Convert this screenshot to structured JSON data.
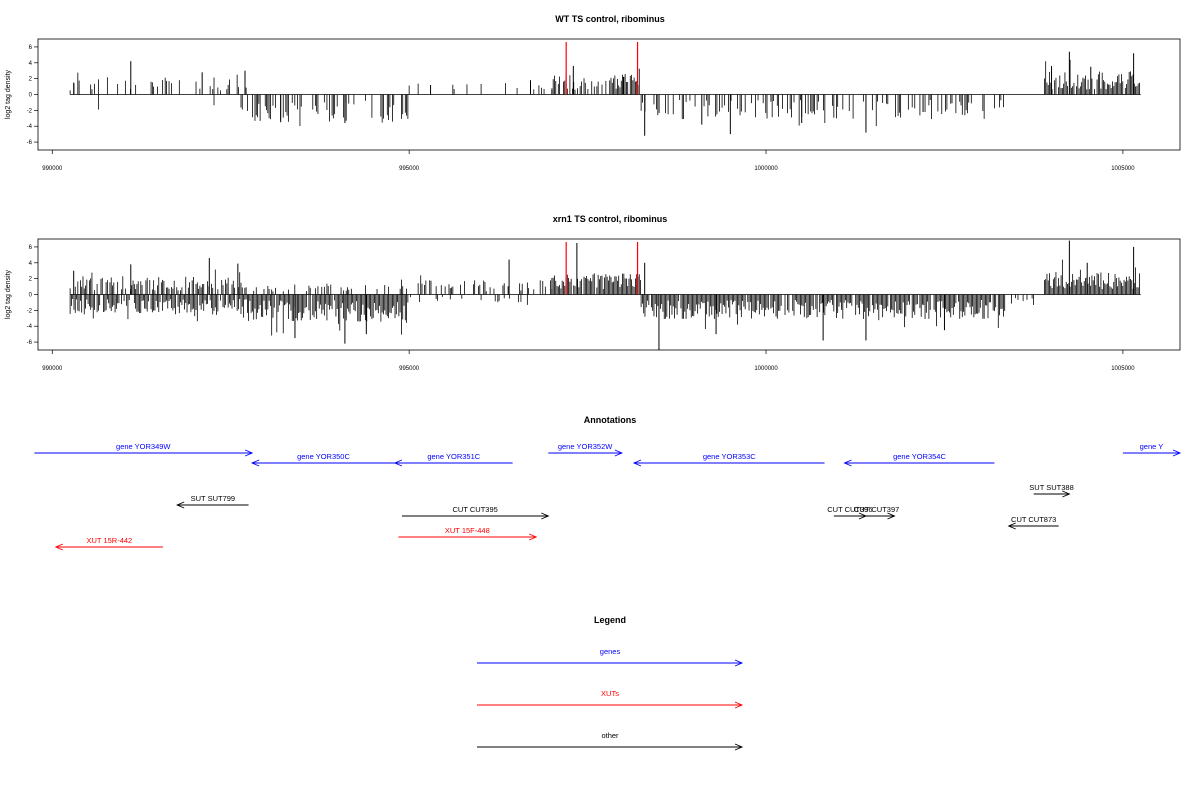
{
  "chart_data": [
    {
      "type": "bar",
      "title": "WT TS control, ribominus",
      "ylabel": "log2 tag density",
      "ylim": [
        -7,
        7
      ],
      "yticks": [
        -6,
        -4,
        -2,
        0,
        2,
        4,
        6
      ],
      "xlim": [
        989800,
        1005800
      ],
      "xticks": [
        990000,
        995000,
        1000000,
        1005000
      ],
      "grid": false,
      "baseline_range": [
        990250,
        1005250
      ],
      "markers": [
        997200,
        998200
      ],
      "marker_color": "#ff0000",
      "values_sample": {
        "x": [
          990300,
          991100,
          992100,
          992700,
          993200,
          994100,
          995300,
          996700,
          997300,
          998000,
          998300,
          999100,
          999500,
          1000500,
          1001400,
          1002200,
          1004000,
          1004250,
          1004550,
          1005150
        ],
        "y": [
          1.5,
          4.2,
          2.8,
          3.0,
          -3.5,
          -3.6,
          1.2,
          1.8,
          3.6,
          2.2,
          -5.2,
          -3.8,
          -5.0,
          -3.6,
          -4.8,
          -2.2,
          3.6,
          5.4,
          3.5,
          5.2
        ]
      },
      "y_extremes": {
        "max": 5.4,
        "min": -5.2
      }
    },
    {
      "type": "bar",
      "title": "xrn1 TS control, ribominus",
      "ylabel": "log2 tag density",
      "ylim": [
        -7,
        7
      ],
      "yticks": [
        -6,
        -4,
        -2,
        0,
        2,
        4,
        6
      ],
      "xlim": [
        989800,
        1005800
      ],
      "xticks": [
        990000,
        995000,
        1000000,
        1005000
      ],
      "grid": false,
      "baseline_range": [
        990250,
        1005250
      ],
      "markers": [
        997200,
        998200
      ],
      "marker_color": "#ff0000",
      "values_sample": {
        "x": [
          990300,
          991100,
          992200,
          992600,
          993400,
          994100,
          994400,
          996400,
          997350,
          998300,
          998500,
          999300,
          1000800,
          1001400,
          1002500,
          1004250,
          1004500,
          1005150
        ],
        "y": [
          3.0,
          3.8,
          4.6,
          3.9,
          -5.5,
          -6.2,
          -5.0,
          4.4,
          6.5,
          4.0,
          -7.0,
          -5.0,
          -5.8,
          -5.8,
          -4.5,
          6.8,
          4.0,
          6.0
        ]
      },
      "y_extremes": {
        "max": 6.8,
        "min": -7.0
      }
    }
  ],
  "annotations": {
    "title": "Annotations",
    "colors": {
      "gene": "#0000ff",
      "xut": "#ff0000",
      "other": "#000000"
    },
    "features": [
      {
        "label": "gene YOR349W",
        "start": 989750,
        "end": 992800,
        "strand": "+",
        "kind": "gene",
        "row": 0
      },
      {
        "label": "gene YOR350C",
        "start": 992800,
        "end": 994800,
        "strand": "-",
        "kind": "gene",
        "row": 1
      },
      {
        "label": "gene YOR351C",
        "start": 994800,
        "end": 996450,
        "strand": "-",
        "kind": "gene",
        "row": 1
      },
      {
        "label": "gene YOR352W",
        "start": 996950,
        "end": 997980,
        "strand": "+",
        "kind": "gene",
        "row": 0
      },
      {
        "label": "gene YOR353C",
        "start": 998150,
        "end": 1000820,
        "strand": "-",
        "kind": "gene",
        "row": 1
      },
      {
        "label": "gene YOR354C",
        "start": 1001100,
        "end": 1003200,
        "strand": "-",
        "kind": "gene",
        "row": 1
      },
      {
        "label": "gene Y",
        "start": 1005000,
        "end": 1005800,
        "strand": "+",
        "kind": "gene",
        "row": 0
      },
      {
        "label": "SUT SUT799",
        "start": 991750,
        "end": 992750,
        "strand": "-",
        "kind": "other",
        "row": 2
      },
      {
        "label": "CUT CUT395",
        "start": 994900,
        "end": 996950,
        "strand": "+",
        "kind": "other",
        "row": 3
      },
      {
        "label": "XUT 15F-448",
        "start": 994850,
        "end": 996780,
        "strand": "+",
        "kind": "xut",
        "row": 4
      },
      {
        "label": "XUT 15R-442",
        "start": 990050,
        "end": 991550,
        "strand": "-",
        "kind": "xut",
        "row": 5
      },
      {
        "label": "CUT CUT396",
        "start": 1000950,
        "end": 1001400,
        "strand": "+",
        "kind": "other",
        "row": 3
      },
      {
        "label": "CUT CUT397",
        "start": 1001300,
        "end": 1001800,
        "strand": "+",
        "kind": "other",
        "row": 3
      },
      {
        "label": "SUT SUT388",
        "start": 1003750,
        "end": 1004250,
        "strand": "+",
        "kind": "other",
        "row": 6
      },
      {
        "label": "CUT CUT873",
        "start": 1003400,
        "end": 1004100,
        "strand": "-",
        "kind": "other",
        "row": 7
      }
    ]
  },
  "legend": {
    "title": "Legend",
    "items": [
      {
        "label": "genes",
        "color": "#0000ff"
      },
      {
        "label": "XUTs",
        "color": "#ff0000"
      },
      {
        "label": "other",
        "color": "#000000"
      }
    ]
  }
}
